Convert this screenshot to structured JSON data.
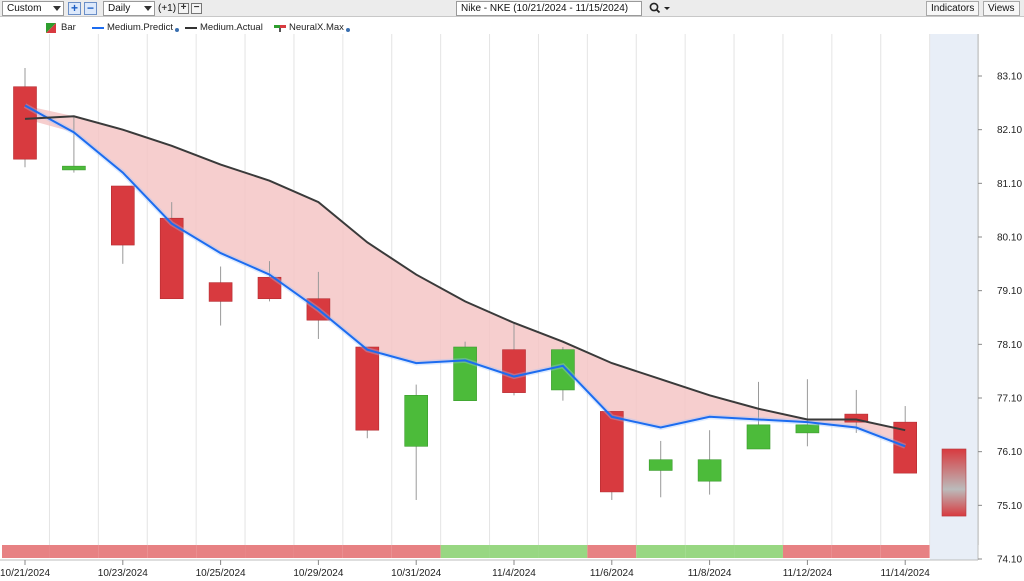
{
  "toolbar": {
    "layout_select": "Custom",
    "period_select": "Daily",
    "offset_label": "(+1)",
    "symbol_title": "Nike - NKE (10/21/2024 - 11/15/2024)",
    "indicators_label": "Indicators",
    "views_label": "Views",
    "icons": [
      "plus-icon",
      "minus-icon",
      "search-icon",
      "chevron-down-icon"
    ]
  },
  "legend": {
    "items": [
      {
        "label": "Bar",
        "color": "#2e9e2e"
      },
      {
        "label": "Medium.Predict",
        "color": "#1c6cf0"
      },
      {
        "label": "Medium.Actual",
        "color": "#333333"
      },
      {
        "label": "NeuralX.Max",
        "color": "#d62f2f"
      }
    ]
  },
  "colors": {
    "bull": "#4cbb3a",
    "bear": "#d83a3f",
    "predict_line": "#1c6cf0",
    "actual_line": "#3a3a3a",
    "fill_band": "#f5c6c6",
    "forecast_bg": "#e8eef7",
    "band_red": "#e78183",
    "band_green": "#98d782"
  },
  "chart_data": {
    "type": "candlestick",
    "y_ticks": [
      "83.10",
      "82.10",
      "81.10",
      "80.10",
      "79.10",
      "78.10",
      "77.10",
      "76.10",
      "75.10",
      "74.10"
    ],
    "ylim": [
      74.1,
      83.1
    ],
    "x_labels": [
      {
        "label": "10/21/2024",
        "index": 0
      },
      {
        "label": "10/23/2024",
        "index": 2
      },
      {
        "label": "10/25/2024",
        "index": 4
      },
      {
        "label": "10/29/2024",
        "index": 6
      },
      {
        "label": "10/31/2024",
        "index": 8
      },
      {
        "label": "11/4/2024",
        "index": 10
      },
      {
        "label": "11/6/2024",
        "index": 12
      },
      {
        "label": "11/8/2024",
        "index": 14
      },
      {
        "label": "11/12/2024",
        "index": 16
      },
      {
        "label": "11/14/2024",
        "index": 18
      }
    ],
    "candles": [
      {
        "open": 82.9,
        "high": 83.25,
        "low": 81.4,
        "close": 81.55
      },
      {
        "open": 81.35,
        "high": 82.35,
        "low": 81.3,
        "close": 81.42
      },
      {
        "open": 81.05,
        "high": 81.05,
        "low": 79.6,
        "close": 79.95
      },
      {
        "open": 80.45,
        "high": 80.75,
        "low": 78.95,
        "close": 78.95
      },
      {
        "open": 79.25,
        "high": 79.55,
        "low": 78.45,
        "close": 78.9
      },
      {
        "open": 79.35,
        "high": 79.65,
        "low": 78.9,
        "close": 78.95
      },
      {
        "open": 78.95,
        "high": 79.45,
        "low": 78.2,
        "close": 78.55
      },
      {
        "open": 78.05,
        "high": 78.05,
        "low": 76.35,
        "close": 76.5
      },
      {
        "open": 76.2,
        "high": 77.35,
        "low": 75.2,
        "close": 77.15
      },
      {
        "open": 77.05,
        "high": 78.15,
        "low": 77.05,
        "close": 78.05
      },
      {
        "open": 78.0,
        "high": 78.5,
        "low": 77.15,
        "close": 77.2
      },
      {
        "open": 77.25,
        "high": 78.05,
        "low": 77.05,
        "close": 78.0
      },
      {
        "open": 76.85,
        "high": 76.85,
        "low": 75.2,
        "close": 75.35
      },
      {
        "open": 75.75,
        "high": 76.3,
        "low": 75.25,
        "close": 75.95
      },
      {
        "open": 75.55,
        "high": 76.5,
        "low": 75.3,
        "close": 75.95
      },
      {
        "open": 76.15,
        "high": 77.4,
        "low": 76.15,
        "close": 76.6
      },
      {
        "open": 76.45,
        "high": 77.45,
        "low": 76.2,
        "close": 76.6
      },
      {
        "open": 76.8,
        "high": 77.25,
        "low": 76.45,
        "close": 76.65
      },
      {
        "open": 76.65,
        "high": 76.95,
        "low": 75.7,
        "close": 75.7
      }
    ],
    "medium_predict": [
      82.55,
      82.05,
      81.3,
      80.35,
      79.8,
      79.4,
      78.75,
      78.0,
      77.75,
      77.8,
      77.5,
      77.7,
      76.75,
      76.55,
      76.75,
      76.7,
      76.65,
      76.55,
      76.2
    ],
    "medium_actual": [
      82.3,
      82.35,
      82.1,
      81.8,
      81.45,
      81.15,
      80.75,
      80.0,
      79.4,
      78.9,
      78.5,
      78.15,
      77.75,
      77.45,
      77.15,
      76.9,
      76.7,
      76.7,
      76.5
    ],
    "forecast": {
      "open": 76.15,
      "close": 74.9,
      "color_top": "#d83a3f",
      "color_bottom": "#bbbbbb"
    },
    "bottom_band": [
      "red",
      "red",
      "red",
      "red",
      "red",
      "red",
      "red",
      "red",
      "red",
      "green",
      "green",
      "green",
      "red",
      "green",
      "green",
      "green",
      "red",
      "red",
      "red"
    ]
  }
}
